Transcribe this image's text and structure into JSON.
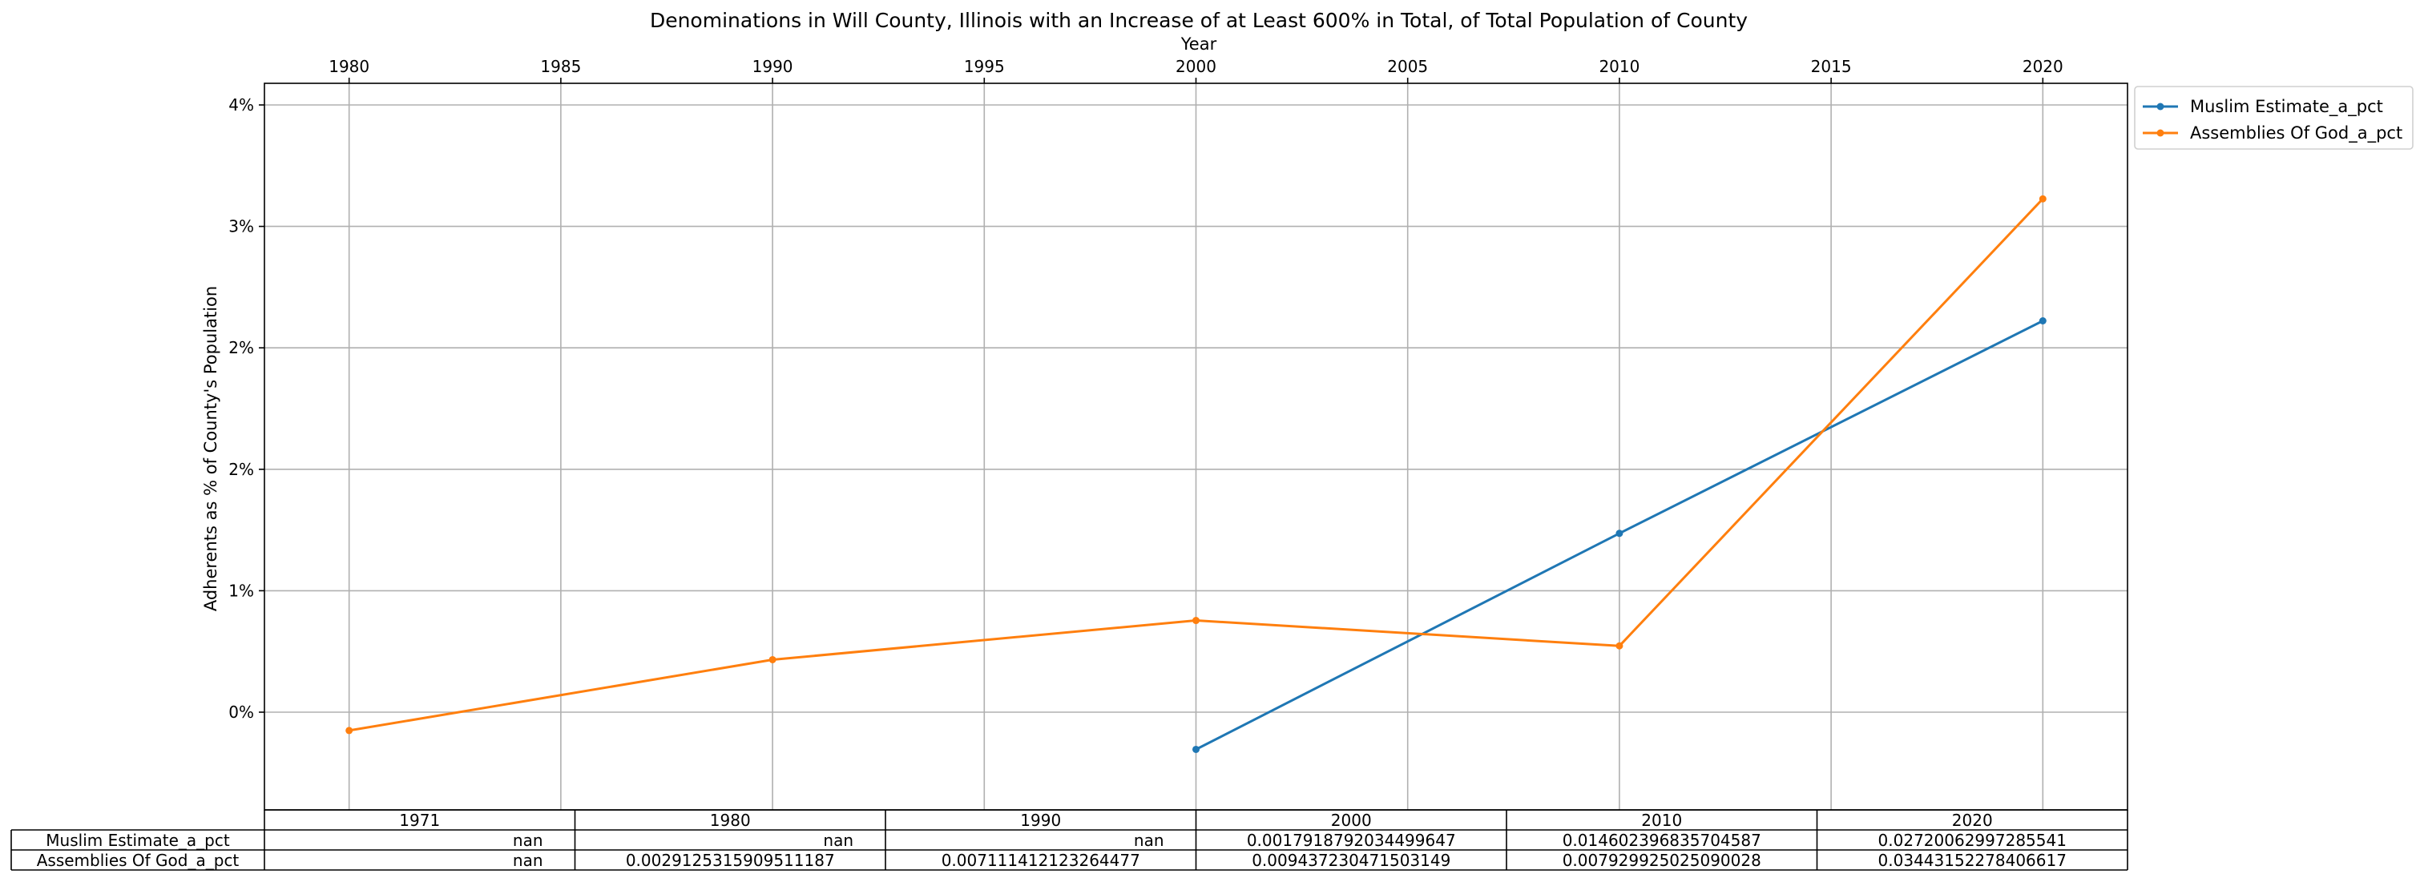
{
  "chart_data": {
    "type": "line",
    "title": "Denominations in Will County, Illinois with an Increase of at Least 600% in Total, of Total Population of County",
    "xlabel": "Year",
    "ylabel": "Adherents as % of County's Population",
    "x_ticks": [
      "1980",
      "1985",
      "1990",
      "1995",
      "2000",
      "2005",
      "2010",
      "2015",
      "2020"
    ],
    "y_tick_labels": [
      "0%",
      "1%",
      "2%",
      "2%",
      "3%",
      "4%"
    ],
    "xlim": [
      1978,
      2022
    ],
    "ylim": [
      -0.000368,
      0.03712
    ],
    "grid": true,
    "legend_position": "upper-right-outside",
    "series": [
      {
        "name": "Muslim Estimate_a_pct",
        "color": "#1f77b4",
        "x": [
          2000,
          2010,
          2020
        ],
        "y": [
          0.0017918792034499647,
          0.014602396835704587,
          0.02720062997285541
        ]
      },
      {
        "name": "Assemblies Of God_a_pct",
        "color": "#ff7f0e",
        "x": [
          1980,
          1990,
          2000,
          2010,
          2020
        ],
        "y": [
          0.0029125315909511187,
          0.007111412123264477,
          0.009437230471503149,
          0.007929925025090028,
          0.03443152278406617
        ]
      }
    ],
    "table": {
      "columns": [
        "1971",
        "1980",
        "1990",
        "2000",
        "2010",
        "2020"
      ],
      "rows": [
        {
          "label": "Muslim Estimate_a_pct",
          "cells": [
            "nan",
            "nan",
            "nan",
            "0.0017918792034499647",
            "0.014602396835704587",
            "0.02720062997285541"
          ]
        },
        {
          "label": "Assemblies Of God_a_pct",
          "cells": [
            "nan",
            "0.0029125315909511187",
            "0.007111412123264477",
            "0.009437230471503149",
            "0.007929925025090028",
            "0.03443152278406617"
          ]
        }
      ]
    }
  }
}
